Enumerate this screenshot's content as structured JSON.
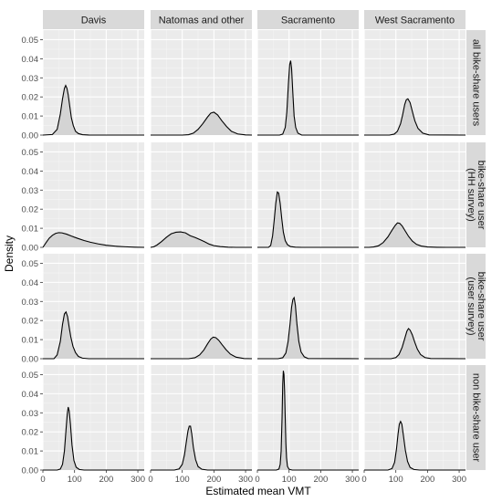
{
  "chart_data": {
    "type": "area",
    "xlabel": "Estimated mean VMT",
    "ylabel": "Density",
    "xlim": [
      0,
      320
    ],
    "ylim": [
      0,
      0.055
    ],
    "x_ticks": [
      0,
      100,
      200,
      300
    ],
    "y_ticks": [
      0.0,
      0.01,
      0.02,
      0.03,
      0.04,
      0.05
    ],
    "y_tick_labels": [
      "0.00",
      "0.01",
      "0.02",
      "0.03",
      "0.04",
      "0.05"
    ],
    "grid": true,
    "columns": [
      "Davis",
      "Natomas and other",
      "Sacramento",
      "West Sacramento"
    ],
    "rows": [
      "all bike-share users",
      "bike-share user (HH survey)",
      "bike-share user (user survey)",
      "non bike-share user"
    ],
    "row_label_lines": [
      [
        "all bike-share users"
      ],
      [
        "bike-share user",
        "(HH survey)"
      ],
      [
        "bike-share user",
        "(user survey)"
      ],
      [
        "non bike-share user"
      ]
    ],
    "panels": [
      [
        {
          "x": [
            0,
            30,
            45,
            55,
            62,
            68,
            72,
            76,
            80,
            85,
            90,
            96,
            103,
            112,
            125,
            145,
            180,
            320
          ],
          "y": [
            0,
            0.0003,
            0.003,
            0.011,
            0.019,
            0.0245,
            0.026,
            0.0245,
            0.021,
            0.015,
            0.009,
            0.005,
            0.002,
            0.0008,
            0.0002,
            5e-05,
            0,
            0
          ]
        },
        {
          "x": [
            0,
            100,
            120,
            135,
            150,
            165,
            180,
            190,
            200,
            212,
            225,
            240,
            255,
            275,
            300,
            320
          ],
          "y": [
            0,
            0,
            0.0002,
            0.001,
            0.003,
            0.006,
            0.0095,
            0.0115,
            0.012,
            0.0105,
            0.0075,
            0.0045,
            0.002,
            0.0006,
            0.0001,
            0
          ]
        },
        {
          "x": [
            0,
            70,
            80,
            88,
            93,
            98,
            102,
            105,
            108,
            112,
            116,
            121,
            128,
            140,
            320
          ],
          "y": [
            0,
            0,
            0.0005,
            0.004,
            0.012,
            0.027,
            0.037,
            0.039,
            0.035,
            0.022,
            0.01,
            0.004,
            0.001,
            0,
            0
          ]
        },
        {
          "x": [
            0,
            80,
            95,
            105,
            115,
            122,
            128,
            133,
            138,
            145,
            152,
            160,
            170,
            185,
            205,
            320
          ],
          "y": [
            0,
            0,
            0.0005,
            0.002,
            0.006,
            0.011,
            0.016,
            0.0185,
            0.019,
            0.017,
            0.0125,
            0.0075,
            0.0035,
            0.001,
            0.0001,
            0
          ]
        }
      ],
      [
        {
          "x": [
            0,
            10,
            20,
            30,
            40,
            50,
            60,
            75,
            90,
            110,
            130,
            150,
            175,
            200,
            230,
            260,
            290,
            320
          ],
          "y": [
            0,
            0.0025,
            0.0048,
            0.0063,
            0.0073,
            0.0077,
            0.0076,
            0.0069,
            0.0059,
            0.0047,
            0.0036,
            0.0027,
            0.0018,
            0.0011,
            0.0006,
            0.0003,
            0.0001,
            0
          ]
        },
        {
          "x": [
            0,
            10,
            20,
            35,
            50,
            65,
            80,
            95,
            110,
            125,
            140,
            155,
            170,
            185,
            200,
            220,
            245,
            270,
            320
          ],
          "y": [
            0,
            0.0003,
            0.0012,
            0.0031,
            0.0053,
            0.0071,
            0.0079,
            0.0081,
            0.0076,
            0.0061,
            0.0052,
            0.0041,
            0.003,
            0.0017,
            0.0009,
            0.0004,
            0.0001,
            0,
            0
          ]
        },
        {
          "x": [
            0,
            35,
            42,
            48,
            53,
            58,
            63,
            67,
            72,
            77,
            82,
            88,
            95,
            105,
            120,
            140,
            320
          ],
          "y": [
            0,
            0,
            0.001,
            0.006,
            0.014,
            0.023,
            0.029,
            0.0285,
            0.023,
            0.015,
            0.008,
            0.0035,
            0.0014,
            0.0004,
            0.0001,
            0,
            0
          ]
        },
        {
          "x": [
            0,
            15,
            30,
            45,
            60,
            75,
            88,
            98,
            105,
            112,
            120,
            130,
            140,
            152,
            165,
            180,
            200,
            230,
            260,
            320
          ],
          "y": [
            0,
            0,
            0.0002,
            0.0008,
            0.0025,
            0.0055,
            0.009,
            0.0115,
            0.0128,
            0.0126,
            0.0112,
            0.0085,
            0.0058,
            0.0033,
            0.0016,
            0.0007,
            0.0002,
            5e-05,
            0,
            0
          ]
        }
      ],
      [
        {
          "x": [
            0,
            35,
            45,
            55,
            62,
            68,
            73,
            78,
            83,
            88,
            95,
            103,
            112,
            125,
            145,
            320
          ],
          "y": [
            0,
            0,
            0.002,
            0.009,
            0.018,
            0.0235,
            0.0245,
            0.022,
            0.0165,
            0.0115,
            0.0065,
            0.0032,
            0.0012,
            0.0003,
            0,
            0
          ]
        },
        {
          "x": [
            0,
            120,
            140,
            155,
            168,
            180,
            190,
            198,
            206,
            215,
            225,
            238,
            252,
            270,
            295,
            320
          ],
          "y": [
            0,
            0,
            0.0005,
            0.002,
            0.0045,
            0.0078,
            0.0103,
            0.0113,
            0.011,
            0.0097,
            0.0075,
            0.0048,
            0.0024,
            0.0008,
            0.0001,
            0
          ]
        },
        {
          "x": [
            0,
            65,
            80,
            90,
            97,
            103,
            108,
            112,
            116,
            120,
            125,
            131,
            138,
            148,
            160,
            320
          ],
          "y": [
            0,
            0,
            0.0005,
            0.003,
            0.009,
            0.018,
            0.027,
            0.031,
            0.032,
            0.028,
            0.018,
            0.009,
            0.0035,
            0.001,
            0.0001,
            0
          ]
        },
        {
          "x": [
            0,
            85,
            100,
            110,
            120,
            128,
            135,
            140,
            145,
            152,
            160,
            168,
            178,
            192,
            210,
            320
          ],
          "y": [
            0,
            0,
            0.0006,
            0.0022,
            0.006,
            0.0105,
            0.0145,
            0.0158,
            0.015,
            0.0125,
            0.0085,
            0.005,
            0.0022,
            0.0006,
            0.0001,
            0
          ]
        }
      ],
      [
        {
          "x": [
            0,
            45,
            55,
            62,
            68,
            73,
            77,
            80,
            83,
            87,
            92,
            98,
            105,
            115,
            130,
            320
          ],
          "y": [
            0,
            0,
            0.0005,
            0.003,
            0.01,
            0.021,
            0.0295,
            0.033,
            0.031,
            0.024,
            0.013,
            0.005,
            0.0015,
            0.0003,
            0,
            0
          ]
        },
        {
          "x": [
            0,
            75,
            90,
            100,
            107,
            113,
            118,
            122,
            126,
            130,
            135,
            142,
            150,
            162,
            180,
            320
          ],
          "y": [
            0,
            0,
            0.0006,
            0.003,
            0.008,
            0.015,
            0.0205,
            0.023,
            0.023,
            0.019,
            0.012,
            0.0055,
            0.0018,
            0.0004,
            0,
            0
          ]
        },
        {
          "x": [
            0,
            60,
            68,
            72,
            75,
            78,
            80,
            82,
            84,
            86,
            88,
            90,
            92,
            95,
            100,
            110,
            320
          ],
          "y": [
            0,
            0,
            0.0005,
            0.003,
            0.01,
            0.028,
            0.045,
            0.052,
            0.05,
            0.041,
            0.027,
            0.014,
            0.0065,
            0.002,
            0.0004,
            0,
            0
          ]
        },
        {
          "x": [
            0,
            75,
            88,
            96,
            102,
            107,
            111,
            115,
            119,
            124,
            130,
            137,
            145,
            157,
            175,
            320
          ],
          "y": [
            0,
            0,
            0.0008,
            0.004,
            0.011,
            0.019,
            0.024,
            0.0255,
            0.024,
            0.018,
            0.0105,
            0.0045,
            0.0014,
            0.0003,
            0,
            0
          ]
        }
      ]
    ]
  }
}
